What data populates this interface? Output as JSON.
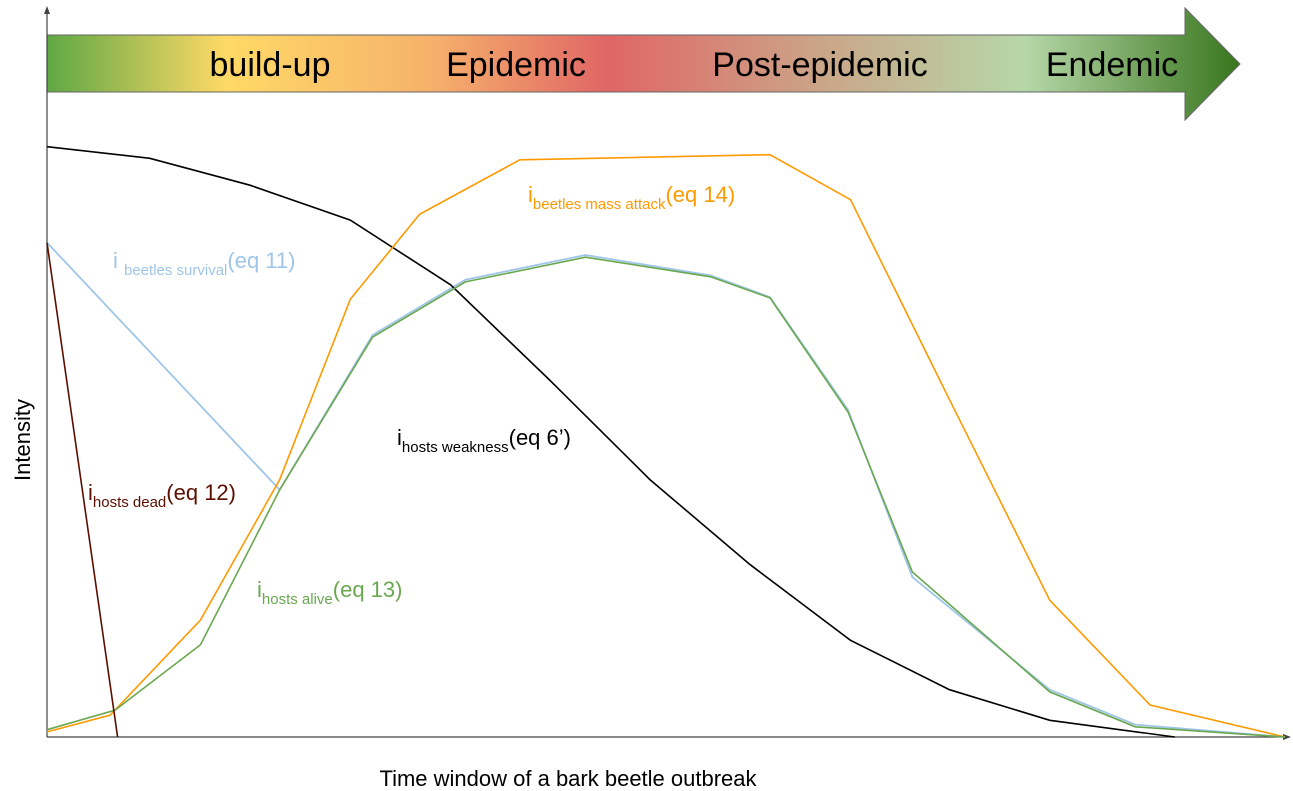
{
  "chart_data": {
    "type": "line",
    "xlabel": "Time window of a bark beetle outbreak",
    "ylabel": "Intensity",
    "xlim": [
      0,
      100
    ],
    "ylim": [
      0,
      100
    ],
    "phases": [
      "build-up",
      "Epidemic",
      "Post-epidemic",
      "Endemic"
    ],
    "series": [
      {
        "name": "hosts weakness",
        "color": "#000000",
        "label": {
          "main": "i",
          "sub": "hosts weakness",
          "eq": "(eq 6’)"
        },
        "x": [
          0,
          8.3,
          16.4,
          24.5,
          32.6,
          40.6,
          48.7,
          56.8,
          64.9,
          72.9,
          81.0,
          91.1
        ],
        "values": [
          81.2,
          79.6,
          75.9,
          71.1,
          62.2,
          49.1,
          35.4,
          23.7,
          13.3,
          6.5,
          2.3,
          0
        ]
      },
      {
        "name": "beetles mass attack",
        "color": "#ff9900",
        "label": {
          "main": "i",
          "sub": "beetles mass attack",
          "eq": "(eq 14)"
        },
        "x": [
          0,
          5.1,
          12.4,
          18.8,
          24.5,
          30.1,
          38.2,
          58.4,
          64.9,
          72.9,
          81.0,
          89.1,
          100
        ],
        "values": [
          0.7,
          3.0,
          16.1,
          35.4,
          60.2,
          71.9,
          79.4,
          80.1,
          73.9,
          46.4,
          18.8,
          4.4,
          0
        ]
      },
      {
        "name": "hosts alive",
        "color": "#6aa84f",
        "label": {
          "main": "i",
          "sub": "hosts alive",
          "eq": "(eq 13)"
        },
        "x": [
          0,
          5.5,
          12.4,
          18.8,
          26.3,
          33.8,
          43.5,
          53.6,
          58.4,
          64.7,
          69.9,
          81.0,
          87.9,
          100
        ],
        "values": [
          1.0,
          3.7,
          12.7,
          34.0,
          55.0,
          62.6,
          66.0,
          63.3,
          60.4,
          44.7,
          22.7,
          6.2,
          1.4,
          0
        ]
      },
      {
        "name": "beetles survival",
        "color": "#9fc5e8",
        "label": {
          "main": "i ",
          "sub": "beetles survival",
          "eq": "(eq 11)"
        },
        "x": [
          0,
          18.8,
          26.3,
          33.8,
          43.5,
          53.6,
          58.4,
          64.7,
          69.9,
          81.0,
          87.9,
          100
        ],
        "values": [
          68.0,
          34.0,
          55.3,
          62.9,
          66.3,
          63.5,
          60.5,
          45.0,
          22.0,
          6.5,
          1.7,
          0
        ]
      },
      {
        "name": "hosts dead",
        "color": "#5b0f00",
        "label": {
          "main": "i",
          "sub": "hosts dead",
          "eq": "(eq 12)"
        },
        "x": [
          0,
          5.7
        ],
        "values": [
          68.0,
          0
        ]
      }
    ]
  }
}
